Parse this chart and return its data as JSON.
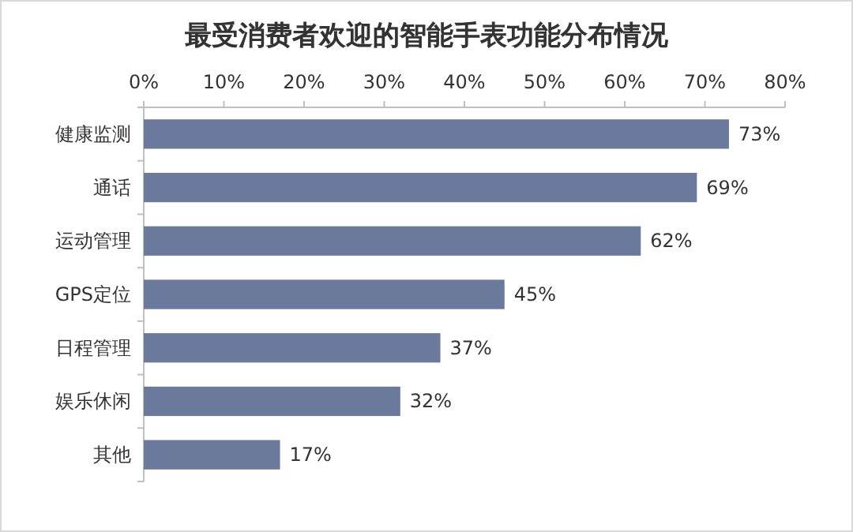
{
  "chart_data": {
    "type": "bar",
    "orientation": "horizontal",
    "title": "最受消费者欢迎的智能手表功能分布情况",
    "categories": [
      "健康监测",
      "通话",
      "运动管理",
      "GPS定位",
      "日程管理",
      "娱乐休闲",
      "其他"
    ],
    "values": [
      73,
      69,
      62,
      45,
      37,
      32,
      17
    ],
    "value_labels": [
      "73%",
      "69%",
      "62%",
      "45%",
      "37%",
      "32%",
      "17%"
    ],
    "color": "#6b7a9c",
    "xlim": [
      0,
      80
    ],
    "xticks": [
      {
        "value": 0,
        "label": "0%"
      },
      {
        "value": 10,
        "label": "10%"
      },
      {
        "value": 20,
        "label": "20%"
      },
      {
        "value": 30,
        "label": "30%"
      },
      {
        "value": 40,
        "label": "40%"
      },
      {
        "value": 50,
        "label": "50%"
      },
      {
        "value": 60,
        "label": "60%"
      },
      {
        "value": 70,
        "label": "70%"
      },
      {
        "value": 80,
        "label": "80%"
      }
    ]
  }
}
